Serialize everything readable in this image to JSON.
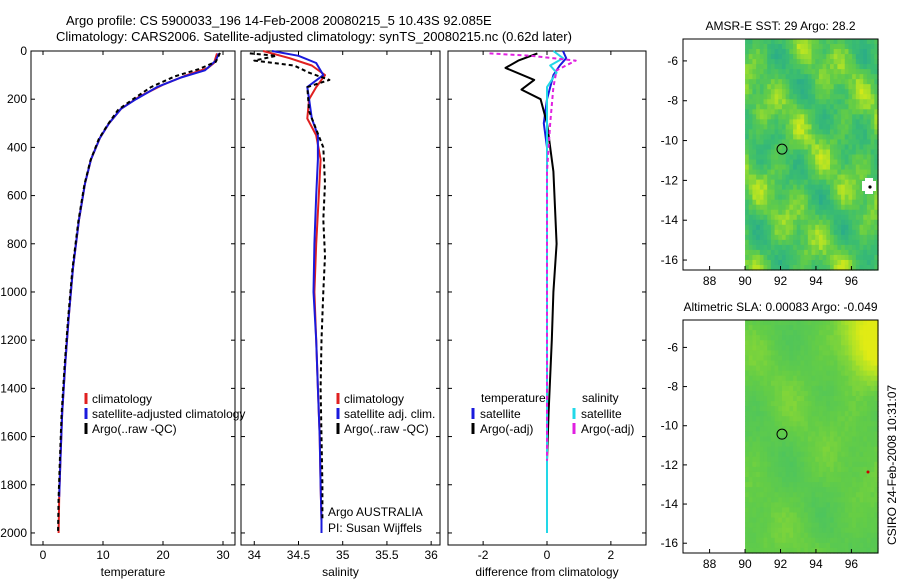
{
  "header": {
    "line1": "Argo profile: CS 5900033_196 14-Feb-2008 20080215_5 10.43S 92.085E",
    "line2": "Climatology: CARS2006. Satellite-adjusted climatology: synTS_20080215.nc (0.62d later)"
  },
  "side_label": "CSIRO 24-Feb-2008 10:31:07",
  "colors": {
    "climatology": "#e02020",
    "satellite": "#1a1adc",
    "argo": "#000000",
    "sat_salinity": "#22d8e8",
    "argo_salinity": "#e020e0"
  },
  "chart_data": [
    {
      "type": "line",
      "title": "",
      "xlabel": "temperature",
      "ylabel": "",
      "xlim": [
        -2,
        32
      ],
      "ylim": [
        2050,
        0
      ],
      "xticks": [
        0,
        10,
        20,
        30
      ],
      "yticks": [
        0,
        200,
        400,
        600,
        800,
        1000,
        1200,
        1400,
        1600,
        1800,
        2000
      ],
      "legend": [
        "climatology",
        "satellite-adjusted climatology",
        "Argo(..raw -QC)"
      ],
      "series": [
        {
          "name": "climatology",
          "color": "climatology",
          "dash": "",
          "x": [
            29.0,
            28.5,
            27.5,
            24.0,
            20.0,
            16.0,
            13.0,
            11.0,
            9.5,
            8.0,
            7.0,
            6.0,
            5.0,
            4.3,
            3.7,
            3.2,
            2.9,
            2.7,
            2.6
          ],
          "y": [
            10,
            50,
            70,
            100,
            140,
            190,
            240,
            300,
            360,
            450,
            550,
            700,
            900,
            1100,
            1300,
            1500,
            1700,
            1850,
            2000
          ]
        },
        {
          "name": "satellite",
          "color": "satellite",
          "dash": "",
          "x": [
            29.3,
            28.8,
            27.0,
            23.0,
            19.0,
            15.5,
            13.0,
            11.0,
            9.5,
            8.0,
            7.0,
            6.0,
            5.0,
            4.3,
            3.7,
            3.2,
            2.9,
            2.7
          ],
          "y": [
            10,
            40,
            80,
            110,
            150,
            200,
            240,
            300,
            360,
            450,
            550,
            700,
            900,
            1100,
            1300,
            1500,
            1700,
            1850
          ]
        },
        {
          "name": "Argo",
          "color": "argo",
          "dash": "4,3",
          "x": [
            29.5,
            28.8,
            26.0,
            22.0,
            18.0,
            15.0,
            12.5,
            10.8,
            9.3,
            7.9,
            6.9,
            5.9,
            4.9,
            4.2,
            3.6,
            3.1,
            2.8,
            2.6,
            2.5
          ],
          "y": [
            8,
            45,
            75,
            105,
            150,
            200,
            245,
            305,
            365,
            455,
            555,
            705,
            905,
            1105,
            1305,
            1505,
            1705,
            1855,
            2000
          ]
        }
      ]
    },
    {
      "type": "line",
      "title": "",
      "xlabel": "salinity",
      "ylabel": "",
      "xlim": [
        33.85,
        36.1
      ],
      "ylim": [
        2050,
        0
      ],
      "xticks": [
        34,
        34.5,
        35,
        35.5,
        36
      ],
      "yticks": [
        0,
        200,
        400,
        600,
        800,
        1000,
        1200,
        1400,
        1600,
        1800,
        2000
      ],
      "legend": [
        "climatology",
        "satellite adj. clim.",
        "Argo(..raw -QC)"
      ],
      "annotation": [
        "Argo AUSTRALIA",
        "PI: Susan Wijffels"
      ],
      "series": [
        {
          "name": "climatology",
          "color": "climatology",
          "dash": "",
          "x": [
            34.1,
            34.4,
            34.65,
            34.8,
            34.7,
            34.62,
            34.6,
            34.7,
            34.75,
            34.73,
            34.7,
            34.68,
            34.7,
            34.72,
            34.74,
            34.75,
            34.76,
            34.76
          ],
          "y": [
            0,
            30,
            60,
            100,
            150,
            200,
            280,
            350,
            450,
            600,
            800,
            1000,
            1200,
            1400,
            1600,
            1800,
            1950,
            2000
          ]
        },
        {
          "name": "satellite",
          "color": "satellite",
          "dash": "",
          "x": [
            34.2,
            34.5,
            34.7,
            34.78,
            34.6,
            34.62,
            34.65,
            34.72,
            34.72,
            34.7,
            34.68,
            34.67,
            34.7,
            34.72,
            34.74,
            34.75,
            34.76,
            34.76
          ],
          "y": [
            0,
            20,
            50,
            100,
            150,
            200,
            280,
            350,
            450,
            600,
            800,
            1000,
            1200,
            1400,
            1600,
            1800,
            1950,
            2000
          ]
        },
        {
          "name": "Argo",
          "color": "argo",
          "dash": "4,3",
          "x": [
            33.95,
            34.25,
            34.0,
            34.45,
            34.62,
            34.85,
            34.6,
            34.62,
            34.78,
            34.8,
            34.78,
            34.8,
            34.78,
            34.76,
            34.75,
            34.76,
            34.77,
            34.77
          ],
          "y": [
            10,
            20,
            40,
            60,
            90,
            120,
            150,
            250,
            400,
            550,
            700,
            850,
            1000,
            1200,
            1400,
            1600,
            1800,
            1950
          ]
        }
      ]
    },
    {
      "type": "line",
      "title": "",
      "xlabel": "difference from climatology",
      "ylabel": "",
      "xlim": [
        -3.1,
        3.1
      ],
      "ylim": [
        2050,
        0
      ],
      "xticks": [
        -2,
        0,
        2
      ],
      "yticks": [
        0,
        200,
        400,
        600,
        800,
        1000,
        1200,
        1400,
        1600,
        1800,
        2000
      ],
      "legend_left_title": "temperature",
      "legend_right_title": "salinity",
      "legend": [
        "satellite",
        "Argo(-adj)",
        "satellite",
        "Argo(-adj)"
      ],
      "series": [
        {
          "name": "temperature satellite",
          "color": "satellite",
          "dash": "",
          "x": [
            0.5,
            0.6,
            0.4,
            0.2,
            0.0,
            -0.1,
            0.0,
            0.0,
            0.0,
            0.0,
            0.0,
            0.0,
            0.0
          ],
          "y": [
            0,
            30,
            60,
            100,
            200,
            300,
            400,
            600,
            800,
            1000,
            1200,
            1500,
            1900
          ]
        },
        {
          "name": "temperature Argo",
          "color": "argo",
          "dash": "",
          "x": [
            -0.3,
            -0.9,
            -1.3,
            -0.4,
            -0.8,
            -0.2,
            0.0,
            0.2,
            0.3,
            0.2,
            0.15,
            0.05,
            0.0
          ],
          "y": [
            10,
            40,
            70,
            120,
            160,
            200,
            300,
            500,
            800,
            1000,
            1200,
            1500,
            1700
          ]
        },
        {
          "name": "salinity satellite",
          "color": "sat_salinity",
          "dash": "",
          "x": [
            0.2,
            0.5,
            0.1,
            0.3,
            0.0,
            0.0,
            0.0,
            0.0,
            0.0,
            0.0,
            0.0,
            0.0,
            0.0
          ],
          "y": [
            0,
            30,
            60,
            90,
            150,
            300,
            500,
            800,
            1100,
            1400,
            1700,
            1900,
            2000
          ]
        },
        {
          "name": "salinity Argo",
          "color": "argo_salinity",
          "dash": "4,3",
          "x": [
            -1.8,
            -0.5,
            0.9,
            0.3,
            0.2,
            0.1,
            0.0,
            0.0,
            0.0,
            0.0,
            0.0,
            0.0
          ],
          "y": [
            10,
            20,
            40,
            80,
            150,
            300,
            500,
            800,
            1100,
            1400,
            1600,
            1700
          ]
        }
      ]
    },
    {
      "type": "heatmap",
      "title": "AMSR-E SST: 29 Argo: 28.2",
      "xlim": [
        86.5,
        97.5
      ],
      "ylim": [
        -16.5,
        -4.9
      ],
      "xticks": [
        88,
        90,
        92,
        94,
        96
      ],
      "yticks": [
        -6,
        -8,
        -10,
        -12,
        -14,
        -16
      ],
      "data_lon_start": 90,
      "marker": {
        "lon": 92.085,
        "lat": -10.43
      }
    },
    {
      "type": "heatmap",
      "title": "Altimetric SLA: 0.00083 Argo: -0.049",
      "xlim": [
        86.5,
        97.5
      ],
      "ylim": [
        -16.5,
        -4.6
      ],
      "xticks": [
        88,
        90,
        92,
        94,
        96
      ],
      "yticks": [
        -6,
        -8,
        -10,
        -12,
        -14,
        -16
      ],
      "data_lon_start": 90,
      "marker": {
        "lon": 92.085,
        "lat": -10.43
      }
    }
  ]
}
